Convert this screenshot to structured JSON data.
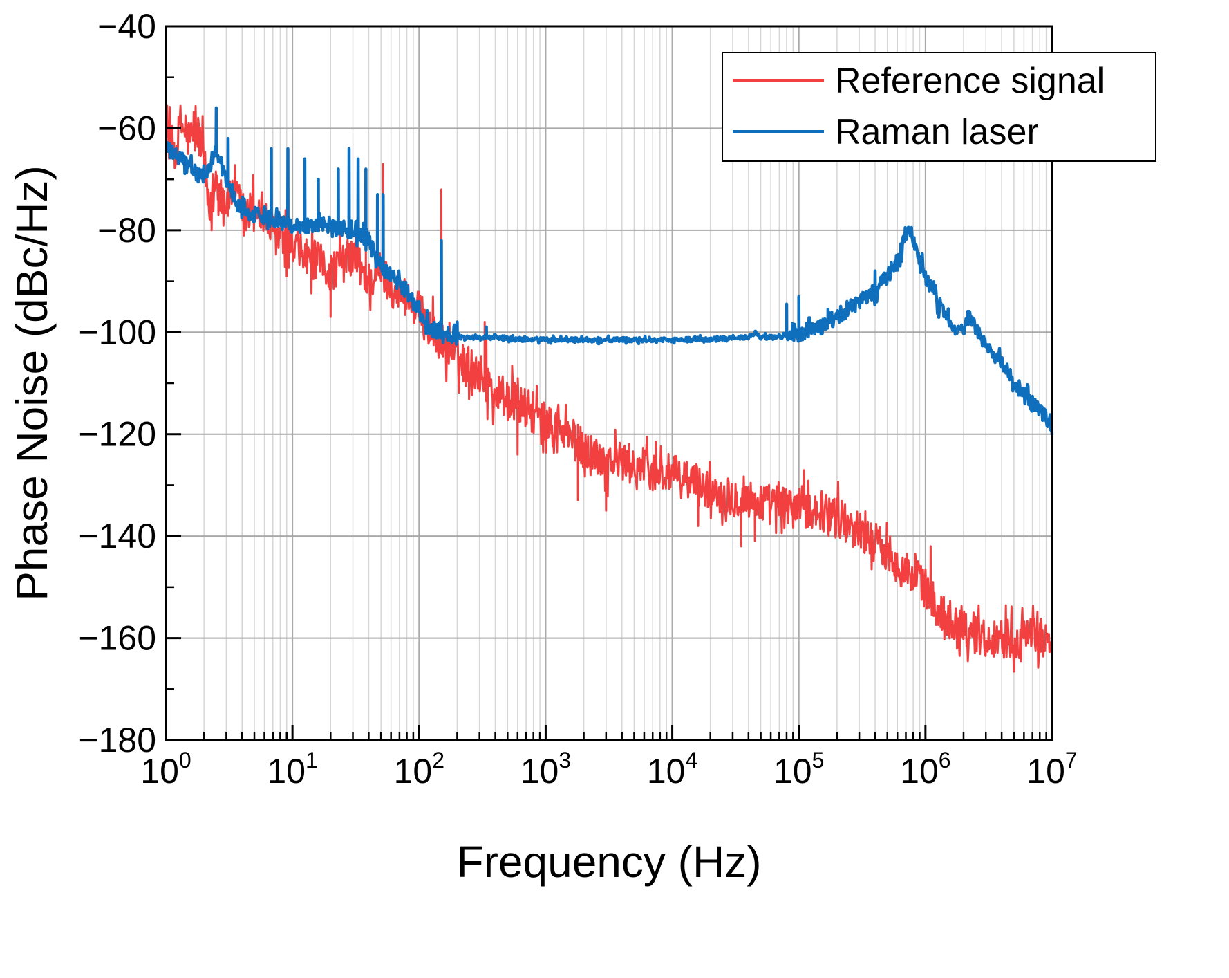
{
  "chart_data": {
    "type": "line",
    "title": "",
    "xlabel": "Frequency (Hz)",
    "ylabel": "Phase Noise (dBc/Hz)",
    "xscale": "log",
    "xlim": [
      1,
      10000000
    ],
    "ylim": [
      -180,
      -40
    ],
    "grid": true,
    "legend_position": "top-right",
    "x_ticks": [
      {
        "base": "10",
        "exp": "0"
      },
      {
        "base": "10",
        "exp": "1"
      },
      {
        "base": "10",
        "exp": "2"
      },
      {
        "base": "10",
        "exp": "3"
      },
      {
        "base": "10",
        "exp": "4"
      },
      {
        "base": "10",
        "exp": "5"
      },
      {
        "base": "10",
        "exp": "6"
      },
      {
        "base": "10",
        "exp": "7"
      }
    ],
    "y_ticks": [
      "−40",
      "−60",
      "−80",
      "−100",
      "−120",
      "−140",
      "−160",
      "−180"
    ],
    "y_tick_values": [
      -40,
      -60,
      -80,
      -100,
      -120,
      -140,
      -160,
      -180
    ],
    "series": [
      {
        "name": "Reference signal",
        "color": "#f24040",
        "noise_amp": 4,
        "points": [
          [
            1,
            -61
          ],
          [
            1.2,
            -65
          ],
          [
            1.3,
            -59
          ],
          [
            1.5,
            -62
          ],
          [
            1.8,
            -61
          ],
          [
            2,
            -66
          ],
          [
            2.2,
            -78
          ],
          [
            2.5,
            -70
          ],
          [
            3,
            -75
          ],
          [
            3.5,
            -71
          ],
          [
            4,
            -79
          ],
          [
            5,
            -75
          ],
          [
            6,
            -78
          ],
          [
            8,
            -82
          ],
          [
            10,
            -84
          ],
          [
            15,
            -86
          ],
          [
            20,
            -88
          ],
          [
            30,
            -85
          ],
          [
            40,
            -90
          ],
          [
            50,
            -88
          ],
          [
            60,
            -91
          ],
          [
            80,
            -93
          ],
          [
            100,
            -96
          ],
          [
            120,
            -99
          ],
          [
            150,
            -102
          ],
          [
            200,
            -105
          ],
          [
            300,
            -108
          ],
          [
            400,
            -112
          ],
          [
            500,
            -113
          ],
          [
            700,
            -115
          ],
          [
            1000,
            -118
          ],
          [
            1500,
            -120
          ],
          [
            2000,
            -123
          ],
          [
            3000,
            -125
          ],
          [
            5000,
            -126
          ],
          [
            10000,
            -128
          ],
          [
            20000,
            -131
          ],
          [
            40000,
            -133
          ],
          [
            70000,
            -134
          ],
          [
            100000,
            -134
          ],
          [
            150000,
            -135
          ],
          [
            200000,
            -136
          ],
          [
            300000,
            -139
          ],
          [
            500000,
            -143
          ],
          [
            700000,
            -147
          ],
          [
            1000000,
            -150
          ],
          [
            1200000,
            -154
          ],
          [
            1500000,
            -156
          ],
          [
            2000000,
            -158
          ],
          [
            3000000,
            -160
          ],
          [
            5000000,
            -160
          ],
          [
            7000000,
            -160
          ],
          [
            10000000,
            -160
          ]
        ],
        "spikes": [
          [
            2.3,
            -80
          ],
          [
            2.6,
            -77
          ],
          [
            3.3,
            -73
          ],
          [
            4.3,
            -80
          ],
          [
            9,
            -89
          ],
          [
            12,
            -84
          ],
          [
            20,
            -97
          ],
          [
            38,
            -82
          ],
          [
            52,
            -67
          ],
          [
            150,
            -72
          ],
          [
            330,
            -98
          ],
          [
            340,
            -101
          ],
          [
            600,
            -124
          ],
          [
            1800,
            -133
          ],
          [
            3000,
            -135
          ],
          [
            7000,
            -131
          ],
          [
            16000,
            -138
          ],
          [
            35000,
            -142
          ],
          [
            45000,
            -141
          ],
          [
            1100000,
            -142
          ]
        ]
      },
      {
        "name": "Raman laser",
        "color": "#0f6fbd",
        "noise_amp": 1.5,
        "points": [
          [
            1,
            -64
          ],
          [
            1.3,
            -66
          ],
          [
            1.6,
            -68
          ],
          [
            2,
            -70
          ],
          [
            2.5,
            -64
          ],
          [
            3,
            -70
          ],
          [
            3.5,
            -74
          ],
          [
            4,
            -76
          ],
          [
            5,
            -77
          ],
          [
            6,
            -77
          ],
          [
            8,
            -78
          ],
          [
            10,
            -79
          ],
          [
            15,
            -79
          ],
          [
            20,
            -79
          ],
          [
            30,
            -80
          ],
          [
            40,
            -82
          ],
          [
            50,
            -87
          ],
          [
            60,
            -89
          ],
          [
            80,
            -92
          ],
          [
            100,
            -96
          ],
          [
            120,
            -99
          ],
          [
            150,
            -100
          ],
          [
            200,
            -101
          ],
          [
            300,
            -101
          ],
          [
            500,
            -101.3
          ],
          [
            1000,
            -101.5
          ],
          [
            10000,
            -101.5
          ],
          [
            30000,
            -101.3
          ],
          [
            40000,
            -101
          ],
          [
            45000,
            -100.2
          ],
          [
            50000,
            -101
          ],
          [
            70000,
            -101
          ],
          [
            100000,
            -100.5
          ],
          [
            150000,
            -99
          ],
          [
            200000,
            -97
          ],
          [
            300000,
            -94
          ],
          [
            400000,
            -92
          ],
          [
            500000,
            -89
          ],
          [
            600000,
            -86
          ],
          [
            700000,
            -81
          ],
          [
            760000,
            -80
          ],
          [
            850000,
            -84
          ],
          [
            1000000,
            -89
          ],
          [
            1300000,
            -95
          ],
          [
            1700000,
            -100
          ],
          [
            2000000,
            -99
          ],
          [
            2200000,
            -97
          ],
          [
            2500000,
            -99
          ],
          [
            3000000,
            -103
          ],
          [
            3500000,
            -105
          ],
          [
            4000000,
            -106
          ],
          [
            5000000,
            -110
          ],
          [
            7000000,
            -114
          ],
          [
            10000000,
            -118
          ]
        ],
        "spikes": [
          [
            2.5,
            -56
          ],
          [
            3.1,
            -62
          ],
          [
            6.8,
            -64
          ],
          [
            9.2,
            -64
          ],
          [
            12.5,
            -66
          ],
          [
            16,
            -70
          ],
          [
            23,
            -68
          ],
          [
            28,
            -64
          ],
          [
            33,
            -66
          ],
          [
            38,
            -68
          ],
          [
            47,
            -73
          ],
          [
            52,
            -73
          ],
          [
            100,
            -94
          ],
          [
            150,
            -82
          ],
          [
            200,
            -98
          ],
          [
            340,
            -99
          ],
          [
            80000,
            -94.5
          ],
          [
            100000,
            -93
          ],
          [
            170000,
            -95.5
          ],
          [
            250000,
            -95
          ],
          [
            400000,
            -88
          ]
        ]
      }
    ]
  }
}
